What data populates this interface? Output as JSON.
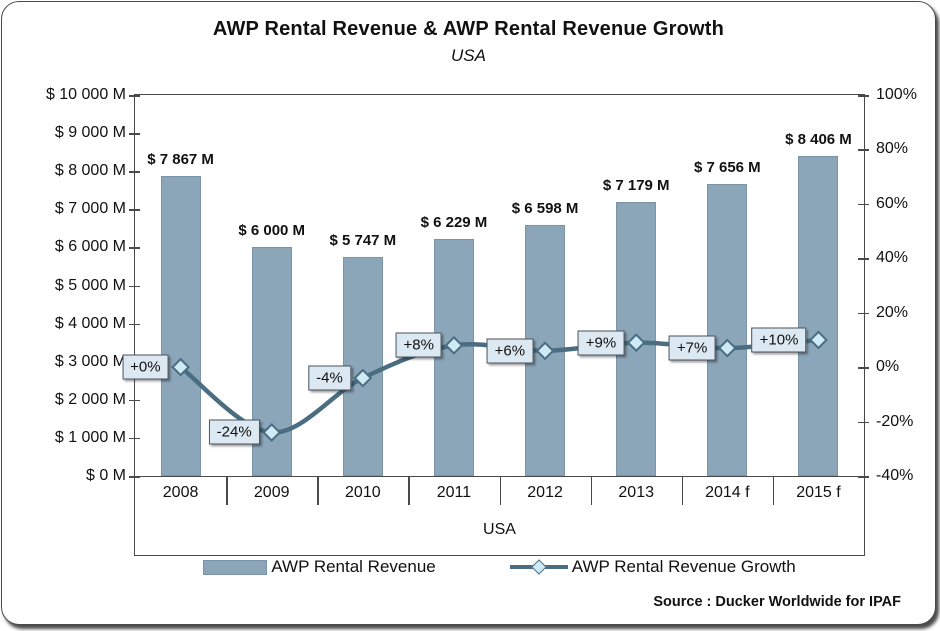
{
  "header": {
    "title": "AWP Rental Revenue & AWP Rental Revenue Growth",
    "subtitle": "USA"
  },
  "source": "Source : Ducker Worldwide for IPAF",
  "colors": {
    "bar_fill": "#8ba6b9",
    "bar_border": "#7a93a6",
    "line": "#4a6d82",
    "marker_fill": "#cdeaf5",
    "label_box_bg": "#dce9f2",
    "label_box_border": "#49535c",
    "axis": "#4a4a4a"
  },
  "chart_data": {
    "type": "bar",
    "title": "AWP Rental Revenue & AWP Rental Revenue Growth",
    "subtitle": "USA",
    "xlabel": "USA",
    "categories": [
      "2008",
      "2009",
      "2010",
      "2011",
      "2012",
      "2013",
      "2014 f",
      "2015 f"
    ],
    "series": [
      {
        "name": "AWP Rental Revenue",
        "type": "bar",
        "axis": "left",
        "values": [
          7867,
          6000,
          5747,
          6229,
          6598,
          7179,
          7656,
          8406
        ],
        "labels": [
          "$ 7 867 M",
          "$ 6 000 M",
          "$ 5 747 M",
          "$ 6 229 M",
          "$ 6 598 M",
          "$ 7 179 M",
          "$ 7 656 M",
          "$ 8 406 M"
        ]
      },
      {
        "name": "AWP Rental Revenue Growth",
        "type": "line",
        "axis": "right",
        "values": [
          0,
          -24,
          -4,
          8,
          6,
          9,
          7,
          10
        ],
        "labels": [
          "+0%",
          "-24%",
          "-4%",
          "+8%",
          "+6%",
          "+9%",
          "+7%",
          "+10%"
        ]
      }
    ],
    "left_axis": {
      "min": 0,
      "max": 10000,
      "step": 1000,
      "tick_labels": [
        "$ 10 000 M",
        "$ 9 000 M",
        "$ 8 000 M",
        "$ 7 000 M",
        "$ 6 000 M",
        "$ 5 000 M",
        "$ 4 000 M",
        "$ 3 000 M",
        "$ 2 000 M",
        "$ 1 000 M",
        "$ 0 M"
      ]
    },
    "right_axis": {
      "min": -40,
      "max": 100,
      "step": 20,
      "tick_labels": [
        "100%",
        "80%",
        "60%",
        "40%",
        "20%",
        "0%",
        "-20%",
        "-40%"
      ]
    },
    "layout_hints": {
      "grid": false,
      "legend_position": "bottom",
      "line_style": "smoothed",
      "marker": "diamond"
    }
  }
}
